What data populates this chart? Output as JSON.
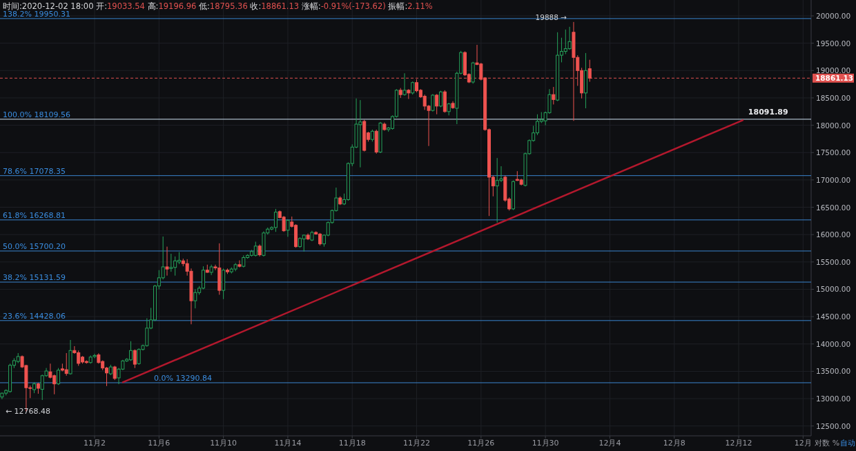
{
  "chart_data": {
    "type": "candlestick",
    "title": "时间:2020-12-02 18:00",
    "annotations": [
      "开:19033.54",
      "高:19196.96",
      "低:18795.36",
      "收:18861.13",
      "涨幅:-0.91%(-173.62)",
      "振幅:2.11%",
      "对数",
      "%",
      "自动",
      {
        "text": "19888 →",
        "x": "2020-12-01T12:00",
        "y": 19888
      },
      {
        "text": "← 12768.48",
        "x": "2020-10-28T18:00",
        "y": 12768.48
      },
      {
        "text": "18091.89",
        "x": "2020-12-12T06:00",
        "y": 18091.89
      }
    ],
    "x": [
      "2020-10-27T06:00",
      "2020-10-27T12:00",
      "2020-10-27T18:00",
      "2020-10-28T00:00",
      "2020-10-28T06:00",
      "2020-10-28T12:00",
      "2020-10-28T18:00",
      "2020-10-29T00:00",
      "2020-10-29T06:00",
      "2020-10-29T12:00",
      "2020-10-29T18:00",
      "2020-10-30T00:00",
      "2020-10-30T06:00",
      "2020-10-30T12:00",
      "2020-10-30T18:00",
      "2020-10-31T00:00",
      "2020-10-31T06:00",
      "2020-10-31T12:00",
      "2020-10-31T18:00",
      "2020-11-01T00:00",
      "2020-11-01T06:00",
      "2020-11-01T12:00",
      "2020-11-01T18:00",
      "2020-11-02T00:00",
      "2020-11-02T06:00",
      "2020-11-02T12:00",
      "2020-11-02T18:00",
      "2020-11-03T00:00",
      "2020-11-03T06:00",
      "2020-11-03T12:00",
      "2020-11-03T18:00",
      "2020-11-04T00:00",
      "2020-11-04T06:00",
      "2020-11-04T12:00",
      "2020-11-04T18:00",
      "2020-11-05T00:00",
      "2020-11-05T06:00",
      "2020-11-05T12:00",
      "2020-11-05T18:00",
      "2020-11-06T00:00",
      "2020-11-06T06:00",
      "2020-11-06T12:00",
      "2020-11-06T18:00",
      "2020-11-07T00:00",
      "2020-11-07T06:00",
      "2020-11-07T12:00",
      "2020-11-07T18:00",
      "2020-11-08T00:00",
      "2020-11-08T06:00",
      "2020-11-08T12:00",
      "2020-11-08T18:00",
      "2020-11-09T00:00",
      "2020-11-09T06:00",
      "2020-11-09T12:00",
      "2020-11-09T18:00",
      "2020-11-10T00:00",
      "2020-11-10T06:00",
      "2020-11-10T12:00",
      "2020-11-10T18:00",
      "2020-11-11T00:00",
      "2020-11-11T06:00",
      "2020-11-11T12:00",
      "2020-11-11T18:00",
      "2020-11-12T00:00",
      "2020-11-12T06:00",
      "2020-11-12T12:00",
      "2020-11-12T18:00",
      "2020-11-13T00:00",
      "2020-11-13T06:00",
      "2020-11-13T12:00",
      "2020-11-13T18:00",
      "2020-11-14T00:00",
      "2020-11-14T06:00",
      "2020-11-14T12:00",
      "2020-11-14T18:00",
      "2020-11-15T00:00",
      "2020-11-15T06:00",
      "2020-11-15T12:00",
      "2020-11-15T18:00",
      "2020-11-16T00:00",
      "2020-11-16T06:00",
      "2020-11-16T12:00",
      "2020-11-16T18:00",
      "2020-11-17T00:00",
      "2020-11-17T06:00",
      "2020-11-17T12:00",
      "2020-11-17T18:00",
      "2020-11-18T00:00",
      "2020-11-18T06:00",
      "2020-11-18T12:00",
      "2020-11-18T18:00",
      "2020-11-19T00:00",
      "2020-11-19T06:00",
      "2020-11-19T12:00",
      "2020-11-19T18:00",
      "2020-11-20T00:00",
      "2020-11-20T06:00",
      "2020-11-20T12:00",
      "2020-11-20T18:00",
      "2020-11-21T00:00",
      "2020-11-21T06:00",
      "2020-11-21T12:00",
      "2020-11-21T18:00",
      "2020-11-22T00:00",
      "2020-11-22T06:00",
      "2020-11-22T12:00",
      "2020-11-22T18:00",
      "2020-11-23T00:00",
      "2020-11-23T06:00",
      "2020-11-23T12:00",
      "2020-11-23T18:00",
      "2020-11-24T00:00",
      "2020-11-24T06:00",
      "2020-11-24T12:00",
      "2020-11-24T18:00",
      "2020-11-25T00:00",
      "2020-11-25T06:00",
      "2020-11-25T12:00",
      "2020-11-25T18:00",
      "2020-11-26T00:00",
      "2020-11-26T06:00",
      "2020-11-26T12:00",
      "2020-11-26T18:00",
      "2020-11-27T00:00",
      "2020-11-27T06:00",
      "2020-11-27T12:00",
      "2020-11-27T18:00",
      "2020-11-28T00:00",
      "2020-11-28T06:00",
      "2020-11-28T12:00",
      "2020-11-28T18:00",
      "2020-11-29T00:00",
      "2020-11-29T06:00",
      "2020-11-29T12:00",
      "2020-11-29T18:00",
      "2020-11-30T00:00",
      "2020-11-30T06:00",
      "2020-11-30T12:00",
      "2020-11-30T18:00",
      "2020-12-01T00:00",
      "2020-12-01T06:00",
      "2020-12-01T12:00",
      "2020-12-01T18:00",
      "2020-12-02T00:00",
      "2020-12-02T06:00",
      "2020-12-02T12:00",
      "2020-12-02T18:00"
    ],
    "ohlc": [
      [
        13030,
        13110,
        12990,
        13100
      ],
      [
        13100,
        13170,
        13060,
        13150
      ],
      [
        13130,
        13640,
        13110,
        13610
      ],
      [
        13610,
        13740,
        13560,
        13695
      ],
      [
        13680,
        13833,
        13650,
        13770
      ],
      [
        13770,
        13790,
        13560,
        13580
      ],
      [
        13606,
        13620,
        12768.48,
        13200
      ],
      [
        13200,
        13240,
        13010,
        13190
      ],
      [
        13165,
        13300,
        13100,
        13270
      ],
      [
        13270,
        13290,
        13090,
        13190
      ],
      [
        13170,
        13440,
        12975,
        13420
      ],
      [
        13420,
        13560,
        13400,
        13505
      ],
      [
        13490,
        13640,
        13370,
        13390
      ],
      [
        13420,
        13440,
        13080,
        13270
      ],
      [
        13270,
        13560,
        13250,
        13520
      ],
      [
        13545,
        13640,
        13500,
        13520
      ],
      [
        13530,
        13833,
        13420,
        13460
      ],
      [
        13455,
        14073,
        13440,
        13880
      ],
      [
        13880,
        13960,
        13820,
        13840
      ],
      [
        13840,
        13880,
        13600,
        13645
      ],
      [
        13760,
        13780,
        13640,
        13670
      ],
      [
        13680,
        13700,
        13640,
        13660
      ],
      [
        13660,
        13790,
        13640,
        13760
      ],
      [
        13770,
        13820,
        13740,
        13790
      ],
      [
        13800,
        13830,
        13640,
        13660
      ],
      [
        13680,
        13700,
        13520,
        13560
      ],
      [
        13560,
        13580,
        13230,
        13470
      ],
      [
        13455,
        13620,
        13430,
        13580
      ],
      [
        13580,
        13600,
        13340,
        13370
      ],
      [
        13380,
        13560,
        13265,
        13540
      ],
      [
        13540,
        13710,
        13520,
        13690
      ],
      [
        13690,
        13740,
        13670,
        13720
      ],
      [
        13710,
        14050,
        13690,
        13880
      ],
      [
        13880,
        13900,
        13560,
        13630
      ],
      [
        13640,
        13920,
        13620,
        13900
      ],
      [
        13900,
        13990,
        13880,
        13970
      ],
      [
        13970,
        14470,
        13950,
        14290
      ],
      [
        14290,
        14660,
        14270,
        14440
      ],
      [
        14440,
        15080,
        14420,
        15060
      ],
      [
        15060,
        15350,
        15000,
        15210
      ],
      [
        15210,
        15965,
        15180,
        15410
      ],
      [
        15410,
        15780,
        15250,
        15370
      ],
      [
        15380,
        15650,
        15320,
        15400
      ],
      [
        15400,
        15600,
        15250,
        15520
      ],
      [
        15500,
        15680,
        15460,
        15530
      ],
      [
        15520,
        15560,
        15420,
        15470
      ],
      [
        15470,
        15550,
        15250,
        15330
      ],
      [
        15330,
        15380,
        14360,
        14790
      ],
      [
        14790,
        15000,
        14650,
        14940
      ],
      [
        14940,
        15060,
        14900,
        15020
      ],
      [
        15020,
        15420,
        15000,
        15350
      ],
      [
        15350,
        15450,
        15300,
        15310
      ],
      [
        15310,
        15450,
        15260,
        15410
      ],
      [
        15410,
        15450,
        15350,
        15390
      ],
      [
        15390,
        15840,
        14900,
        14980
      ],
      [
        14980,
        15380,
        14820,
        15350
      ],
      [
        15350,
        15380,
        15280,
        15320
      ],
      [
        15320,
        15400,
        15290,
        15370
      ],
      [
        15370,
        15480,
        15330,
        15450
      ],
      [
        15450,
        15530,
        15400,
        15420
      ],
      [
        15420,
        15620,
        15400,
        15580
      ],
      [
        15580,
        15640,
        15560,
        15620
      ],
      [
        15620,
        15720,
        15600,
        15690
      ],
      [
        15620,
        15870,
        15600,
        15790
      ],
      [
        15790,
        15820,
        15600,
        15630
      ],
      [
        15620,
        16060,
        15600,
        16030
      ],
      [
        16030,
        16130,
        16000,
        16100
      ],
      [
        16100,
        16150,
        16080,
        16130
      ],
      [
        16130,
        16470,
        16050,
        16410
      ],
      [
        16420,
        16440,
        16300,
        16310
      ],
      [
        16320,
        16340,
        16050,
        16070
      ],
      [
        16080,
        16280,
        15960,
        16260
      ],
      [
        16230,
        16330,
        16130,
        16150
      ],
      [
        16170,
        16190,
        15760,
        15780
      ],
      [
        15780,
        15950,
        15760,
        15930
      ],
      [
        15920,
        16000,
        15690,
        15990
      ],
      [
        15990,
        16020,
        15900,
        15920
      ],
      [
        15900,
        16070,
        15880,
        16040
      ],
      [
        16040,
        16060,
        16000,
        16010
      ],
      [
        16010,
        16030,
        15800,
        15830
      ],
      [
        15830,
        16000,
        15780,
        15990
      ],
      [
        15990,
        16240,
        15970,
        16220
      ],
      [
        16220,
        16460,
        16200,
        16440
      ],
      [
        16440,
        16860,
        16420,
        16670
      ],
      [
        16670,
        16700,
        16540,
        16560
      ],
      [
        16560,
        16750,
        16540,
        16640
      ],
      [
        16640,
        17320,
        16620,
        17300
      ],
      [
        17300,
        17650,
        17250,
        17600
      ],
      [
        17600,
        18490,
        17580,
        18020
      ],
      [
        18010,
        18460,
        17230,
        18060
      ],
      [
        18070,
        18100,
        17520,
        17540
      ],
      [
        17860,
        17880,
        17700,
        17740
      ],
      [
        17740,
        17920,
        17700,
        17890
      ],
      [
        17890,
        17920,
        17480,
        17510
      ],
      [
        17510,
        18060,
        17490,
        18040
      ],
      [
        18020,
        18050,
        17900,
        17920
      ],
      [
        17920,
        17970,
        17880,
        17950
      ],
      [
        17940,
        18180,
        17920,
        18160
      ],
      [
        18160,
        18660,
        18140,
        18640
      ],
      [
        18640,
        18680,
        18500,
        18560
      ],
      [
        18560,
        18950,
        18540,
        18640
      ],
      [
        18640,
        18660,
        18480,
        18590
      ],
      [
        18590,
        18800,
        18560,
        18780
      ],
      [
        18780,
        18840,
        18600,
        18630
      ],
      [
        18640,
        18660,
        18500,
        18520
      ],
      [
        18530,
        18560,
        18280,
        18350
      ],
      [
        18350,
        18370,
        17620,
        18270
      ],
      [
        18270,
        18570,
        18250,
        18550
      ],
      [
        18550,
        18570,
        18200,
        18350
      ],
      [
        18350,
        18630,
        18330,
        18610
      ],
      [
        18610,
        18640,
        18230,
        18250
      ],
      [
        18250,
        18410,
        18180,
        18390
      ],
      [
        18400,
        18440,
        18300,
        18320
      ],
      [
        18310,
        18980,
        18020,
        18950
      ],
      [
        18950,
        19360,
        18930,
        19330
      ],
      [
        19330,
        19350,
        18900,
        18920
      ],
      [
        18930,
        18950,
        18770,
        18790
      ],
      [
        18790,
        19160,
        18760,
        19140
      ],
      [
        19140,
        19470,
        19100,
        19110
      ],
      [
        19120,
        19140,
        18820,
        18840
      ],
      [
        18865,
        18880,
        17900,
        17920
      ],
      [
        17920,
        17940,
        16340,
        17050
      ],
      [
        17050,
        17080,
        16700,
        16890
      ],
      [
        16890,
        17400,
        16220,
        16990
      ],
      [
        16990,
        17250,
        16960,
        17020
      ],
      [
        17050,
        17080,
        16600,
        16630
      ],
      [
        16650,
        16680,
        16440,
        16470
      ],
      [
        16470,
        16990,
        16450,
        16970
      ],
      [
        17010,
        17160,
        16980,
        16990
      ],
      [
        17000,
        17020,
        16900,
        16920
      ],
      [
        16900,
        17500,
        16880,
        17480
      ],
      [
        17480,
        17740,
        17460,
        17720
      ],
      [
        17720,
        17990,
        17700,
        17860
      ],
      [
        17860,
        18200,
        17820,
        18070
      ],
      [
        18070,
        18240,
        18040,
        18100
      ],
      [
        18080,
        18250,
        18000,
        18230
      ],
      [
        18230,
        18660,
        18210,
        18560
      ],
      [
        18560,
        18700,
        18380,
        18470
      ],
      [
        18460,
        19700,
        18440,
        19280
      ],
      [
        19280,
        19600,
        19150,
        19350
      ],
      [
        19350,
        19750,
        19300,
        19400
      ],
      [
        19400,
        19800,
        19380,
        19530
      ],
      [
        19700,
        19888,
        18080,
        19240
      ],
      [
        19240,
        19280,
        18720,
        19000
      ],
      [
        19000,
        19050,
        18490,
        18590
      ],
      [
        18590,
        19320,
        18310,
        19000
      ],
      [
        19033.54,
        19196.96,
        18795.36,
        18861.13
      ]
    ],
    "series": [
      {
        "type": "line",
        "x": [
          "2020-11-03T18:00",
          "2020-12-12T06:00"
        ],
        "values": [
          13300,
          18091.89
        ],
        "color": "#b3182d"
      }
    ],
    "xlim": [
      "2020-10-27T03:00",
      "2020-12-16T12:00"
    ],
    "ylim": [
      12320,
      20290
    ],
    "xticks": [
      {
        "value": "2020-11-02",
        "label": "11月2"
      },
      {
        "value": "2020-11-06",
        "label": "11月6"
      },
      {
        "value": "2020-11-10",
        "label": "11月10"
      },
      {
        "value": "2020-11-14",
        "label": "11月14"
      },
      {
        "value": "2020-11-18",
        "label": "11月18"
      },
      {
        "value": "2020-11-22",
        "label": "11月22"
      },
      {
        "value": "2020-11-26",
        "label": "11月26"
      },
      {
        "value": "2020-11-30",
        "label": "11月30"
      },
      {
        "value": "2020-12-04",
        "label": "12月4"
      },
      {
        "value": "2020-12-08",
        "label": "12月8"
      },
      {
        "value": "2020-12-12",
        "label": "12月12"
      },
      {
        "value": "2020-12-16",
        "label": "12月"
      }
    ],
    "yticks": [
      {
        "value": 12500,
        "label": "12500.00"
      },
      {
        "value": 13000,
        "label": "13000.00"
      },
      {
        "value": 13500,
        "label": "13500.00"
      },
      {
        "value": 14000,
        "label": "14000.00"
      },
      {
        "value": 14500,
        "label": "14500.00"
      },
      {
        "value": 15000,
        "label": "15000.00"
      },
      {
        "value": 15500,
        "label": "15500.00"
      },
      {
        "value": 16000,
        "label": "16000.00"
      },
      {
        "value": 16500,
        "label": "16500.00"
      },
      {
        "value": 17000,
        "label": "17000.00"
      },
      {
        "value": 17500,
        "label": "17500.00"
      },
      {
        "value": 18000,
        "label": "18000.00"
      },
      {
        "value": 18500,
        "label": "18500.00"
      },
      {
        "value": 19000,
        "label": "19000.00"
      },
      {
        "value": 19500,
        "label": "19500.00"
      },
      {
        "value": 20000,
        "label": "20000.00"
      }
    ],
    "ref_lines": [
      {
        "axis": "y",
        "value": 19950.31,
        "label": "138.2% 19950.31",
        "color": "#3a86d0"
      },
      {
        "axis": "y",
        "value": 18109.56,
        "label": "100.0% 18109.56",
        "color": "#cfe3f5"
      },
      {
        "axis": "y",
        "value": 17078.35,
        "label": "78.6% 17078.35",
        "color": "#3a86d0"
      },
      {
        "axis": "y",
        "value": 16268.81,
        "label": "61.8% 16268.81",
        "color": "#3a86d0"
      },
      {
        "axis": "y",
        "value": 15700.2,
        "label": "50.0% 15700.20",
        "color": "#3a86d0"
      },
      {
        "axis": "y",
        "value": 15131.59,
        "label": "38.2% 15131.59",
        "color": "#3a86d0"
      },
      {
        "axis": "y",
        "value": 14428.06,
        "label": "23.6% 14428.06",
        "color": "#3a86d0"
      },
      {
        "axis": "y",
        "value": 13290.84,
        "label": "0.0% 13290.84",
        "color": "#3a86d0"
      },
      {
        "axis": "y",
        "value": 18861.13,
        "label": "18861.13",
        "color": "#e0514f",
        "line_style": "dashed"
      }
    ],
    "grid": true
  }
}
